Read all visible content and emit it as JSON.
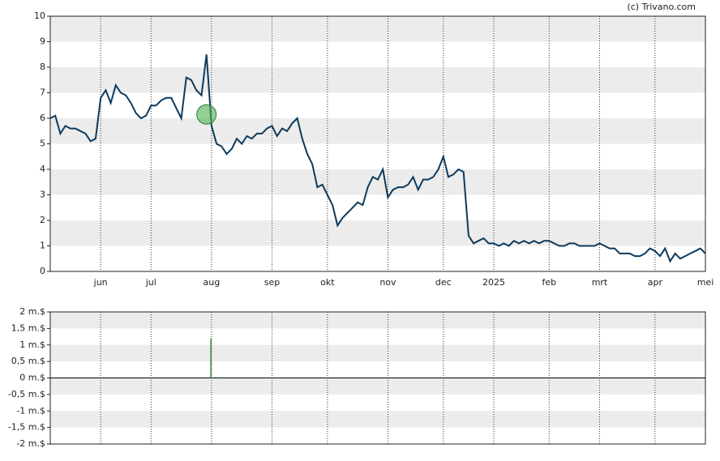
{
  "credit": "(c) Trivano.com",
  "chart_data": [
    {
      "type": "line",
      "categories": [
        null,
        null,
        null,
        null,
        null,
        null,
        null,
        null,
        null,
        null,
        "jun",
        null,
        null,
        null,
        null,
        null,
        null,
        null,
        null,
        null,
        "jul",
        null,
        null,
        null,
        null,
        null,
        null,
        null,
        null,
        null,
        null,
        null,
        "aug",
        null,
        null,
        null,
        null,
        null,
        null,
        null,
        null,
        null,
        null,
        null,
        "sep",
        null,
        null,
        null,
        null,
        null,
        null,
        null,
        null,
        null,
        null,
        "okt",
        null,
        null,
        null,
        null,
        null,
        null,
        null,
        null,
        null,
        null,
        null,
        "nov",
        null,
        null,
        null,
        null,
        null,
        null,
        null,
        null,
        null,
        null,
        "dec",
        null,
        null,
        null,
        null,
        null,
        null,
        null,
        null,
        null,
        "2025",
        null,
        null,
        null,
        null,
        null,
        null,
        null,
        null,
        null,
        null,
        "feb",
        null,
        null,
        null,
        null,
        null,
        null,
        null,
        null,
        null,
        "mrt",
        null,
        null,
        null,
        null,
        null,
        null,
        null,
        null,
        null,
        null,
        "apr",
        null,
        null,
        null,
        null,
        null,
        null,
        null,
        null,
        null,
        "mei"
      ],
      "series": [
        {
          "color": "#0d3a5c",
          "values": [
            6.0,
            6.1,
            5.4,
            5.7,
            5.6,
            5.6,
            5.5,
            5.4,
            5.1,
            5.2,
            6.8,
            7.1,
            6.6,
            7.3,
            7.0,
            6.9,
            6.6,
            6.2,
            6.0,
            6.1,
            6.5,
            6.5,
            6.7,
            6.8,
            6.8,
            6.4,
            6.0,
            7.6,
            7.5,
            7.1,
            6.9,
            8.5,
            5.7,
            5.0,
            4.9,
            4.6,
            4.8,
            5.2,
            5.0,
            5.3,
            5.2,
            5.4,
            5.4,
            5.6,
            5.7,
            5.3,
            5.6,
            5.5,
            5.8,
            6.0,
            5.2,
            4.6,
            4.2,
            3.3,
            3.4,
            3.0,
            2.6,
            1.8,
            2.1,
            2.3,
            2.5,
            2.7,
            2.6,
            3.3,
            3.7,
            3.6,
            4.0,
            2.9,
            3.2,
            3.3,
            3.3,
            3.4,
            3.7,
            3.2,
            3.6,
            3.6,
            3.7,
            4.0,
            4.5,
            3.7,
            3.8,
            4.0,
            3.9,
            1.4,
            1.1,
            1.2,
            1.3,
            1.1,
            1.1,
            1.0,
            1.1,
            1.0,
            1.2,
            1.1,
            1.2,
            1.1,
            1.2,
            1.1,
            1.2,
            1.2,
            1.1,
            1.0,
            1.0,
            1.1,
            1.1,
            1.0,
            1.0,
            1.0,
            1.0,
            1.1,
            1.0,
            0.9,
            0.9,
            0.7,
            0.7,
            0.7,
            0.6,
            0.6,
            0.7,
            0.9,
            0.8,
            0.6,
            0.9,
            0.4,
            0.7,
            0.5,
            0.6,
            0.7,
            0.8,
            0.9,
            0.7
          ]
        }
      ],
      "marker": {
        "index": 31,
        "value": 6.15,
        "color": "#4caf50"
      },
      "ylim": [
        0,
        10
      ],
      "yticks": [
        0,
        1,
        2,
        3,
        4,
        5,
        6,
        7,
        8,
        9,
        10
      ],
      "grid": true
    },
    {
      "type": "bar",
      "color": "#2e8b3e",
      "values": [
        0,
        0,
        0,
        0,
        0,
        0,
        0,
        0,
        0,
        0,
        0,
        0,
        0,
        0,
        0,
        0,
        0,
        0,
        0,
        0,
        0,
        0,
        0,
        0,
        0,
        0,
        0,
        0,
        0,
        0,
        0,
        0,
        1.2,
        0.03,
        0.02,
        0,
        0,
        0,
        0,
        0,
        0,
        0,
        0,
        0,
        0,
        0,
        0,
        0,
        0,
        0,
        0,
        0,
        0,
        0,
        0,
        0,
        0,
        0,
        0,
        0,
        0,
        0,
        0,
        0,
        0,
        0,
        0,
        0,
        0,
        0,
        0,
        0,
        0,
        0,
        0,
        0,
        0,
        0,
        0,
        0,
        0,
        0,
        0,
        0,
        0,
        0,
        0,
        0,
        0,
        0,
        0,
        0,
        0,
        0,
        0,
        0,
        0,
        0,
        0,
        0,
        0,
        0,
        0,
        0,
        0,
        0,
        0,
        0,
        0,
        0,
        0,
        0,
        0,
        0,
        0,
        0,
        0,
        0,
        0,
        0,
        0,
        0,
        0,
        0,
        0,
        0,
        0,
        0,
        0,
        0,
        0,
        0,
        0
      ],
      "ylim": [
        -2,
        2
      ],
      "yticks": [
        {
          "value": -2,
          "label": "-2 m.$"
        },
        {
          "value": -1.5,
          "label": "-1,5 m.$"
        },
        {
          "value": -1,
          "label": "-1 m.$"
        },
        {
          "value": -0.5,
          "label": "-0,5 m.$"
        },
        {
          "value": 0,
          "label": "0 m.$"
        },
        {
          "value": 0.5,
          "label": "0,5 m.$"
        },
        {
          "value": 1,
          "label": "1 m.$"
        },
        {
          "value": 1.5,
          "label": "1,5 m.$"
        },
        {
          "value": 2,
          "label": "2 m.$"
        }
      ],
      "grid": true
    }
  ]
}
